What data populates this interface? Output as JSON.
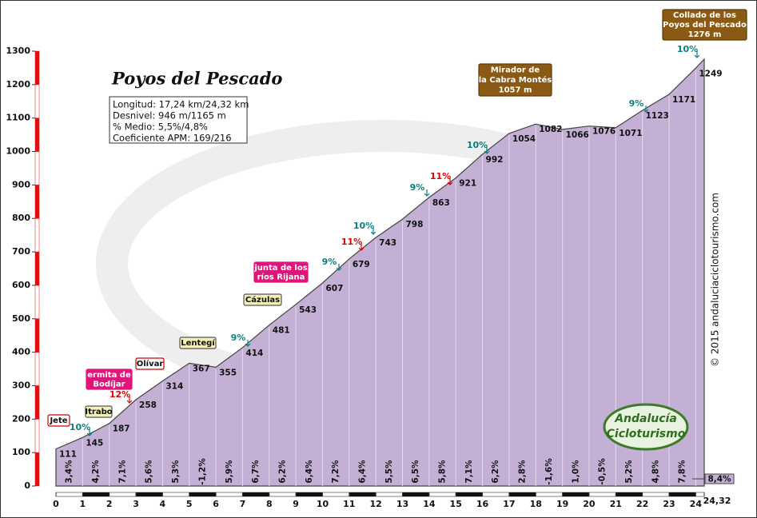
{
  "title": "Poyos del Pescado",
  "info": [
    "Longitud: 17,24 km/24,32 km",
    "Desnivel: 946 m/1165 m",
    "% Medio: 5,5%/4,8%",
    "Coeficiente APM: 169/216"
  ],
  "watermark": "© 2015 andaluciaciclotourismo.com",
  "logo": [
    "Andalucía",
    "Cicloturismo"
  ],
  "chart_data": {
    "type": "area",
    "x": [
      0,
      1,
      2,
      3,
      4,
      5,
      6,
      7,
      8,
      9,
      10,
      11,
      12,
      13,
      14,
      15,
      16,
      17,
      18,
      19,
      20,
      21,
      22,
      23,
      24,
      24.32
    ],
    "values": [
      111,
      145,
      187,
      258,
      314,
      367,
      355,
      414,
      481,
      543,
      607,
      679,
      743,
      798,
      863,
      921,
      992,
      1054,
      1082,
      1066,
      1076,
      1071,
      1123,
      1171,
      1249,
      1276
    ],
    "color": "#c4b0d4",
    "xlim": [
      0,
      24.32
    ],
    "ylim": [
      0,
      1300
    ],
    "xticks": [
      0,
      1,
      2,
      3,
      4,
      5,
      6,
      7,
      8,
      9,
      10,
      11,
      12,
      13,
      14,
      15,
      16,
      17,
      18,
      19,
      20,
      21,
      22,
      23,
      24,
      {
        "value": 24.32,
        "label": "24,32"
      }
    ],
    "yticks": [
      0,
      100,
      200,
      300,
      400,
      500,
      600,
      700,
      800,
      900,
      1000,
      1100,
      1200,
      1300
    ],
    "segment_gradients": [
      "3,4%",
      "4,2%",
      "7,1%",
      "5,6%",
      "5,3%",
      "-1,2%",
      "5,9%",
      "6,7%",
      "6,2%",
      "6,4%",
      "7,2%",
      "6,4%",
      "5,5%",
      "6,5%",
      "5,8%",
      "7,1%",
      "6,2%",
      "2,8%",
      "-1,6%",
      "1,0%",
      "-0,5%",
      "5,2%",
      "4,8%",
      "7,8%",
      "8,4%"
    ],
    "gradient_markers": [
      {
        "label": "10%",
        "color": "#0a8080"
      },
      {
        "label": "12%",
        "color": "#e00000"
      },
      {
        "label": "9%",
        "color": "#0a8080"
      },
      {
        "label": "9%",
        "color": "#0a8080"
      },
      {
        "label": "11%",
        "color": "#e00000"
      },
      {
        "label": "10%",
        "color": "#0a8080"
      },
      {
        "label": "9%",
        "color": "#0a8080"
      },
      {
        "label": "11%",
        "color": "#e00000"
      },
      {
        "label": "10%",
        "color": "#0a8080"
      },
      {
        "label": "9%",
        "color": "#0a8080"
      },
      {
        "label": "10%",
        "color": "#0a8080"
      }
    ],
    "places": [
      {
        "lines": [
          "Jete"
        ],
        "fill": "#ffffff",
        "border": "#cc0000",
        "text": "#111111"
      },
      {
        "lines": [
          "ermita de",
          "Bodíjar"
        ],
        "fill": "#e0157a",
        "border": "#e0157a",
        "text": "#ffffff"
      },
      {
        "lines": [
          "Itrabo"
        ],
        "fill": "#f3f0b8",
        "border": "#555555",
        "text": "#111111"
      },
      {
        "lines": [
          "Olívar"
        ],
        "fill": "#ffffff",
        "border": "#cc0000",
        "text": "#111111"
      },
      {
        "lines": [
          "Lentegí"
        ],
        "fill": "#f3f0b8",
        "border": "#555555",
        "text": "#111111"
      },
      {
        "lines": [
          "Cázulas"
        ],
        "fill": "#f3f0b8",
        "border": "#555555",
        "text": "#111111"
      },
      {
        "lines": [
          "junta de los",
          "ríos Rijana"
        ],
        "fill": "#e0157a",
        "border": "#e0157a",
        "text": "#ffffff"
      },
      {
        "lines": [
          "Mirador de",
          "la Cabra Montés",
          "1057 m"
        ],
        "fill": "#8a5a14",
        "border": "#5a3a08",
        "text": "#ffffff"
      },
      {
        "lines": [
          "Collado de los",
          "Poyos del Pescado",
          "1276 m"
        ],
        "fill": "#8a5a14",
        "border": "#5a3a08",
        "text": "#ffffff"
      }
    ]
  }
}
